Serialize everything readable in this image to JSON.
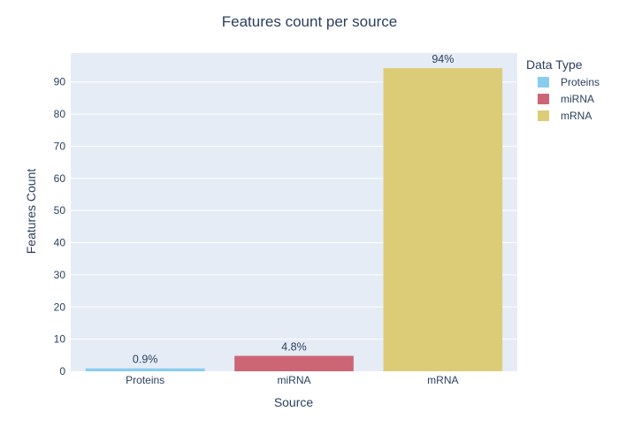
{
  "chart_data": {
    "type": "bar",
    "title": "Features count per source",
    "xlabel": "Source",
    "ylabel": "Features Count",
    "categories": [
      "Proteins",
      "miRNA",
      "mRNA"
    ],
    "values": [
      0.9,
      4.8,
      94.3
    ],
    "bar_labels": [
      "0.9%",
      "4.8%",
      "94%"
    ],
    "colors": [
      "#88CCEE",
      "#CC6677",
      "#DDCC77"
    ],
    "ylim": [
      0,
      99
    ],
    "yticks": [
      0,
      10,
      20,
      30,
      40,
      50,
      60,
      70,
      80,
      90
    ],
    "ytick_labels": [
      "0",
      "10",
      "20",
      "30",
      "40",
      "50",
      "60",
      "70",
      "80",
      "90"
    ],
    "plot_background": "#E5ECF6",
    "grid": true,
    "legend": {
      "title": "Data Type",
      "placement": "top-right",
      "entries": [
        "Proteins",
        "miRNA",
        "mRNA"
      ]
    }
  }
}
